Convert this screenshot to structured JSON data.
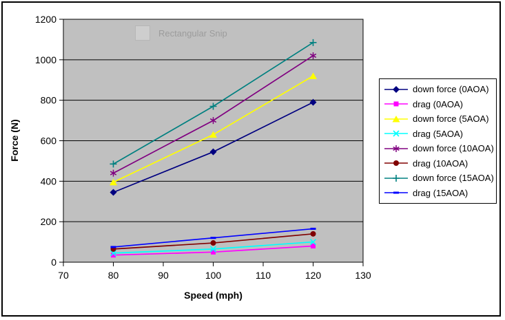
{
  "chart_data": {
    "type": "line",
    "x": [
      80,
      100,
      120
    ],
    "series": [
      {
        "name": "down force (0AOA)",
        "color": "#000080",
        "marker": "diamond",
        "values": [
          345,
          545,
          790
        ]
      },
      {
        "name": "drag (0AOA)",
        "color": "#FF00FF",
        "marker": "square",
        "values": [
          35,
          50,
          80
        ]
      },
      {
        "name": "down force (5AOA)",
        "color": "#FFFF00",
        "marker": "triangle",
        "values": [
          395,
          630,
          920
        ]
      },
      {
        "name": "drag (5AOA)",
        "color": "#00FFFF",
        "marker": "x",
        "values": [
          45,
          65,
          100
        ]
      },
      {
        "name": "down force (10AOA)",
        "color": "#800080",
        "marker": "asterisk",
        "values": [
          440,
          700,
          1020
        ]
      },
      {
        "name": "drag (10AOA)",
        "color": "#800000",
        "marker": "circle",
        "values": [
          65,
          95,
          140
        ]
      },
      {
        "name": "down force (15AOA)",
        "color": "#008080",
        "marker": "plus",
        "values": [
          485,
          770,
          1085
        ]
      },
      {
        "name": "drag (15AOA)",
        "color": "#0000FF",
        "marker": "dash",
        "values": [
          75,
          120,
          165
        ]
      }
    ],
    "title": "",
    "xlabel": "Speed (mph)",
    "ylabel": "Force (N)",
    "xlim": [
      70,
      130
    ],
    "ylim": [
      0,
      1200
    ],
    "x_ticks": [
      70,
      80,
      90,
      100,
      110,
      120,
      130
    ],
    "y_ticks": [
      0,
      200,
      400,
      600,
      800,
      1000,
      1200
    ],
    "grid": "horizontal",
    "gridline_color": "#000000",
    "plot_bg": "#c0c0c0",
    "legend_position": "right"
  },
  "watermark": {
    "text": "Rectangular Snip"
  }
}
